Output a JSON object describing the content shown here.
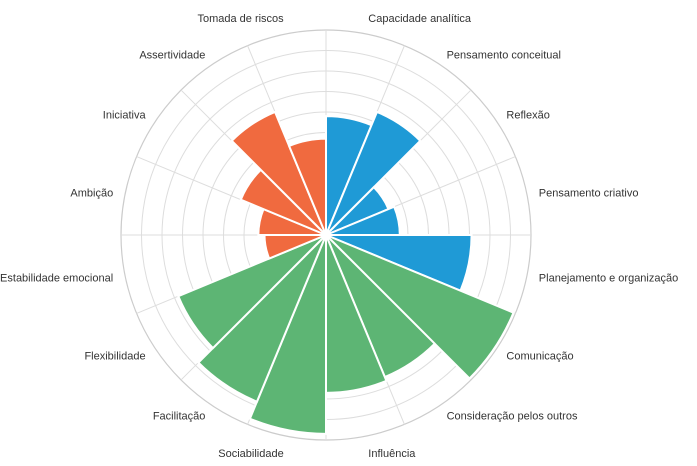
{
  "chart_data": {
    "type": "polar-area",
    "title": "",
    "grid": true,
    "rlim": [
      0,
      10
    ],
    "ring_steps": 10,
    "categories": [
      "Capacidade analítica",
      "Pensamento conceitual",
      "Reflexão",
      "Pensamento criativo",
      "Planejamento e organização",
      "Comunicação",
      "Consideração pelos outros",
      "Influência",
      "Sociabilidade",
      "Facilitação",
      "Flexibilidade",
      "Estabilidade emocional",
      "Ambição",
      "Iniciativa",
      "Assertividade",
      "Tomada de riscos"
    ],
    "values": [
      5.8,
      6.5,
      3.3,
      3.6,
      7.1,
      9.9,
      7.5,
      7.7,
      9.7,
      8.8,
      7.8,
      3.0,
      3.3,
      4.5,
      6.5,
      4.7
    ],
    "colors": [
      "#1f9ad6",
      "#1f9ad6",
      "#1f9ad6",
      "#1f9ad6",
      "#1f9ad6",
      "#5db574",
      "#5db574",
      "#5db574",
      "#5db574",
      "#5db574",
      "#5db574",
      "#f06a3f",
      "#f06a3f",
      "#f06a3f",
      "#f06a3f",
      "#f06a3f"
    ]
  }
}
